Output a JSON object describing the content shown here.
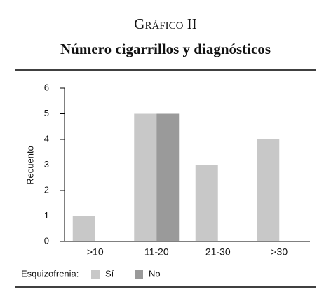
{
  "chart_data": {
    "type": "bar",
    "title": "Gráfico II",
    "subtitle": "Número cigarrillos y diagnósticos",
    "ylabel": "Recuento",
    "legend_title": "Esquizofrenia:",
    "categories": [
      ">10",
      "11-20",
      "21-30",
      ">30"
    ],
    "series": [
      {
        "name": "Sí",
        "color": "#c8c8c8",
        "values": [
          1,
          5,
          3,
          4
        ]
      },
      {
        "name": "No",
        "color": "#9a9a9a",
        "values": [
          0,
          5,
          0,
          0
        ]
      }
    ],
    "ylim": [
      0,
      6
    ],
    "yticks": [
      0,
      1,
      2,
      3,
      4,
      5,
      6
    ],
    "grid": false,
    "legend": "bottom"
  }
}
